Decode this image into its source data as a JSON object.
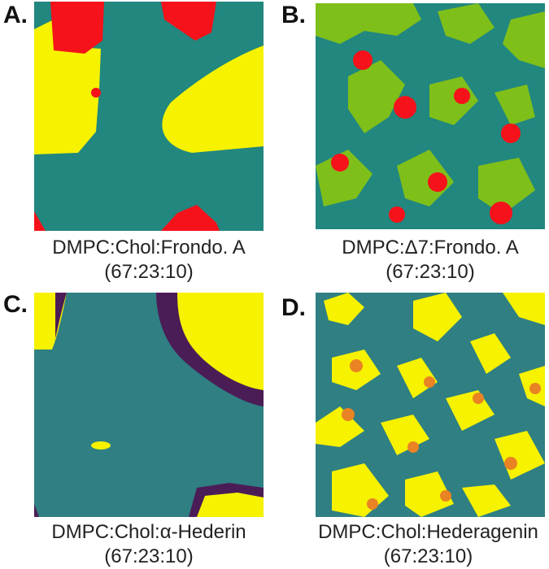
{
  "panels": [
    {
      "letter": "A.",
      "caption_line1": "DMPC:Chol:Frondo. A",
      "caption_line2": "(67:23:10)"
    },
    {
      "letter": "B.",
      "caption_line1": "DMPC:Δ7:Frondo. A",
      "caption_line2": "(67:23:10)"
    },
    {
      "letter": "C.",
      "caption_line1": "DMPC:Chol:α-Hederin",
      "caption_line2": "(67:23:10)"
    },
    {
      "letter": "D.",
      "caption_line1": "DMPC:Chol:Hederagenin",
      "caption_line2": "(67:23:10)"
    }
  ],
  "colors": {
    "teal": "#21877f",
    "teal_dark": "#2f7f83",
    "yellow": "#f6f200",
    "red": "#f5121a",
    "green": "#7fbf19",
    "purple": "#4b1d56",
    "orange": "#e98324"
  }
}
